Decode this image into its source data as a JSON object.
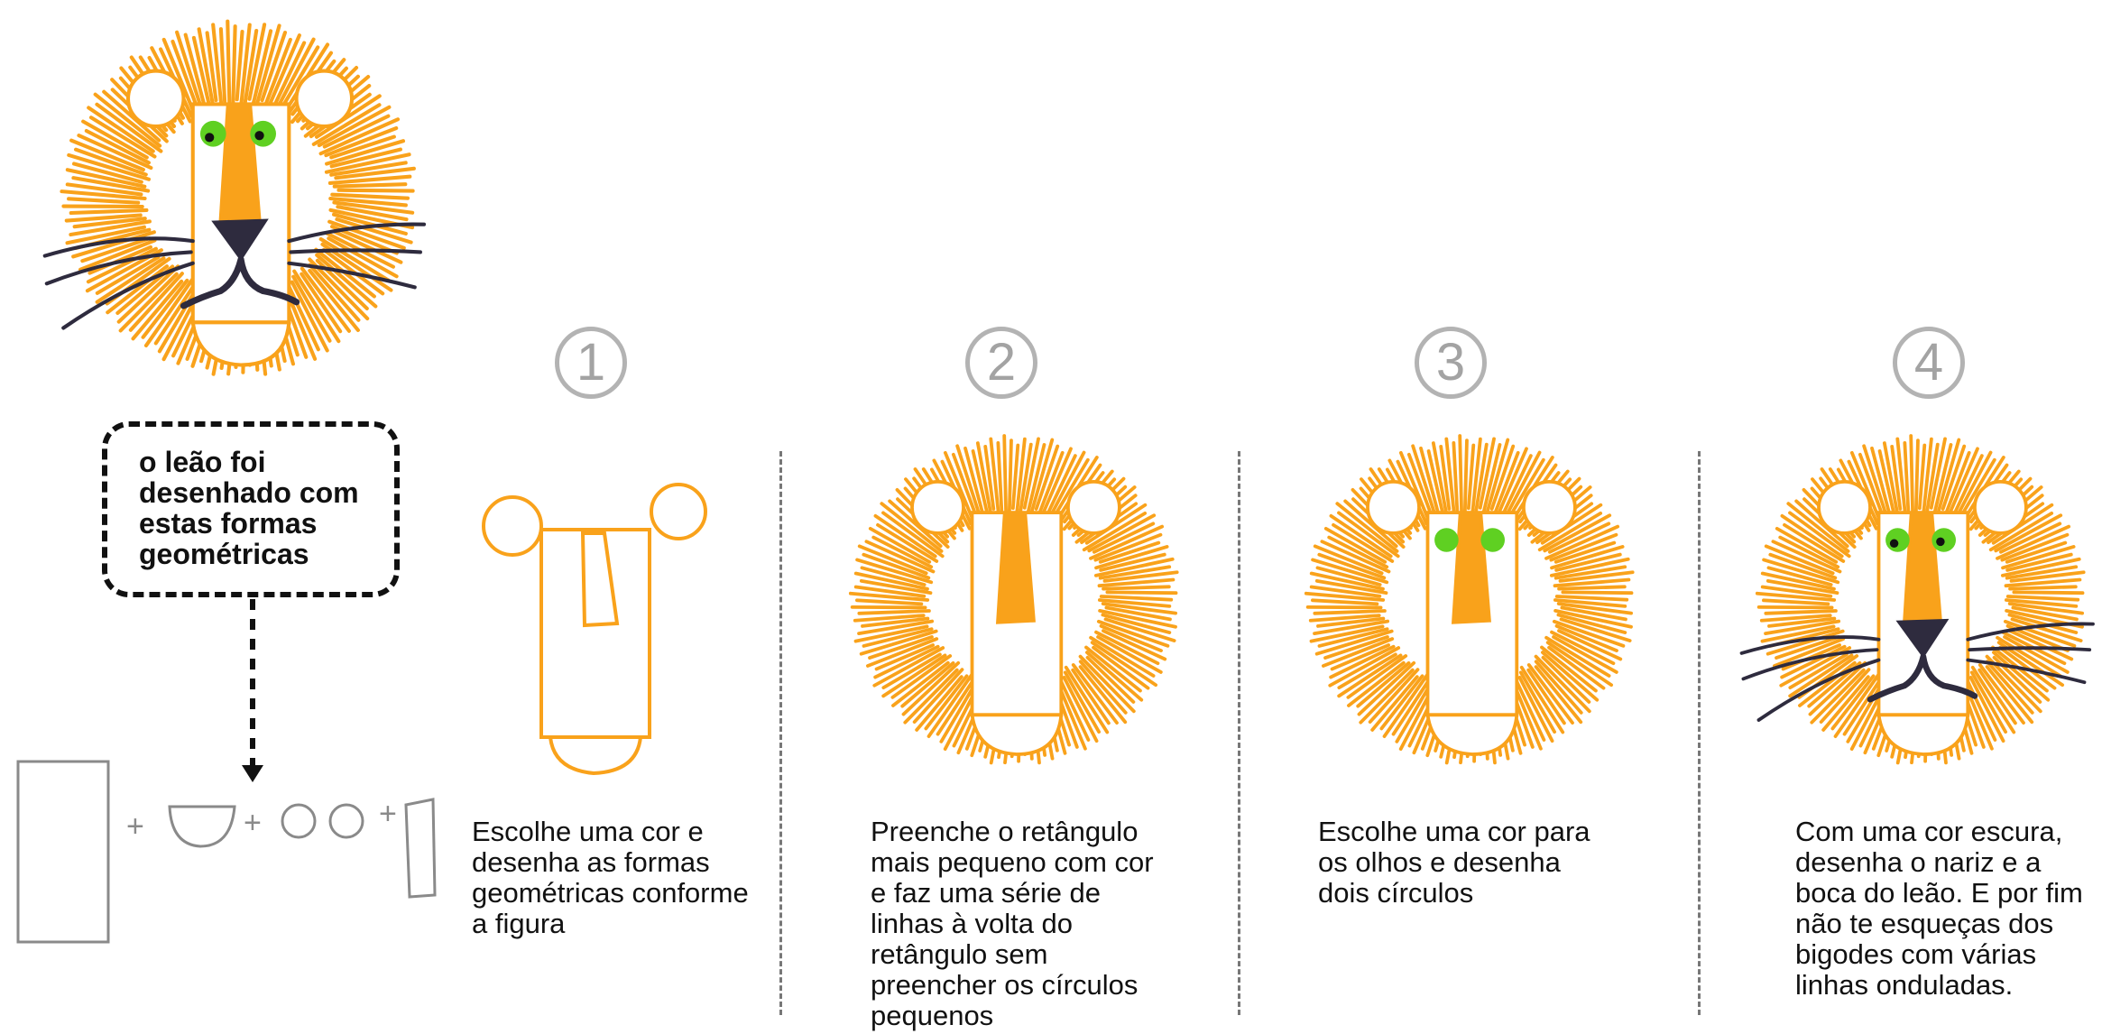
{
  "callout": {
    "text": "o leão foi\ndesenhado com\nestas formas\ngeométricas"
  },
  "steps": [
    {
      "number": "1",
      "text": "Escolhe uma cor e\ndesenha as formas\ngeométricas conforme\na figura"
    },
    {
      "number": "2",
      "text": "Preenche o retângulo\nmais pequeno com cor\ne faz uma série de\nlinhas à volta do\nretângulo sem\npreencher os círculos\npequenos"
    },
    {
      "number": "3",
      "text": "Escolhe uma cor para\nos olhos e desenha\ndois círculos"
    },
    {
      "number": "4",
      "text": "Com uma cor escura,\ndesenha o nariz e a\nboca do leão. E por fim\nnão te esqueças dos\nbigodes com várias\nlinhas onduladas."
    }
  ],
  "shapes_row": {
    "plus_signs": [
      "+",
      "+",
      "+"
    ]
  },
  "colors": {
    "mane_orange": "#f9a21b",
    "eye_green": "#5fd022",
    "nose_dark": "#2e2b3e",
    "outline_gray": "#8a8a8a",
    "number_gray": "#b3b3b3",
    "divider_gray": "#777777"
  },
  "icons": {
    "main_lion": "lion-face-icon",
    "step_lion": "lion-face-icon",
    "arrow": "arrow-down-icon"
  }
}
